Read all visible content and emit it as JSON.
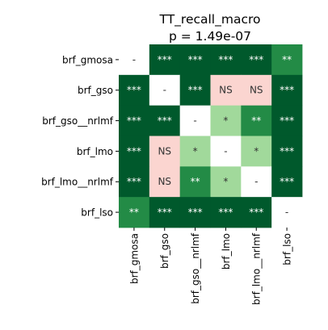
{
  "chart_data": {
    "type": "heatmap",
    "title": "TT_recall_macro",
    "subtitle": "p = 1.49e-07",
    "rows": [
      "brf_gmosa",
      "brf_gso",
      "brf_gso__nrlmf",
      "brf_lmo",
      "brf_lmo__nrlmf",
      "brf_lso"
    ],
    "columns": [
      "brf_gmosa",
      "brf_gso",
      "brf_gso__nrlmf",
      "brf_lmo",
      "brf_lmo__nrlmf",
      "brf_lso"
    ],
    "cells": [
      [
        "-",
        "***",
        "***",
        "***",
        "***",
        "**"
      ],
      [
        "***",
        "-",
        "***",
        "NS",
        "NS",
        "***"
      ],
      [
        "***",
        "***",
        "-",
        "*",
        "**",
        "***"
      ],
      [
        "***",
        "NS",
        "*",
        "-",
        "*",
        "***"
      ],
      [
        "***",
        "NS",
        "**",
        "*",
        "-",
        "***"
      ],
      [
        "**",
        "***",
        "***",
        "***",
        "***",
        "-"
      ]
    ],
    "category_colors": {
      "***": "#00592c",
      "**": "#238b46",
      "*": "#a1d99b",
      "NS": "#fbd5d0",
      "-": "#ffffff"
    },
    "text_colors": {
      "***": "#ffffff",
      "**": "#ffffff",
      "*": "#333333",
      "NS": "#333333",
      "-": "#333333"
    },
    "grid": false,
    "legend": "none"
  }
}
